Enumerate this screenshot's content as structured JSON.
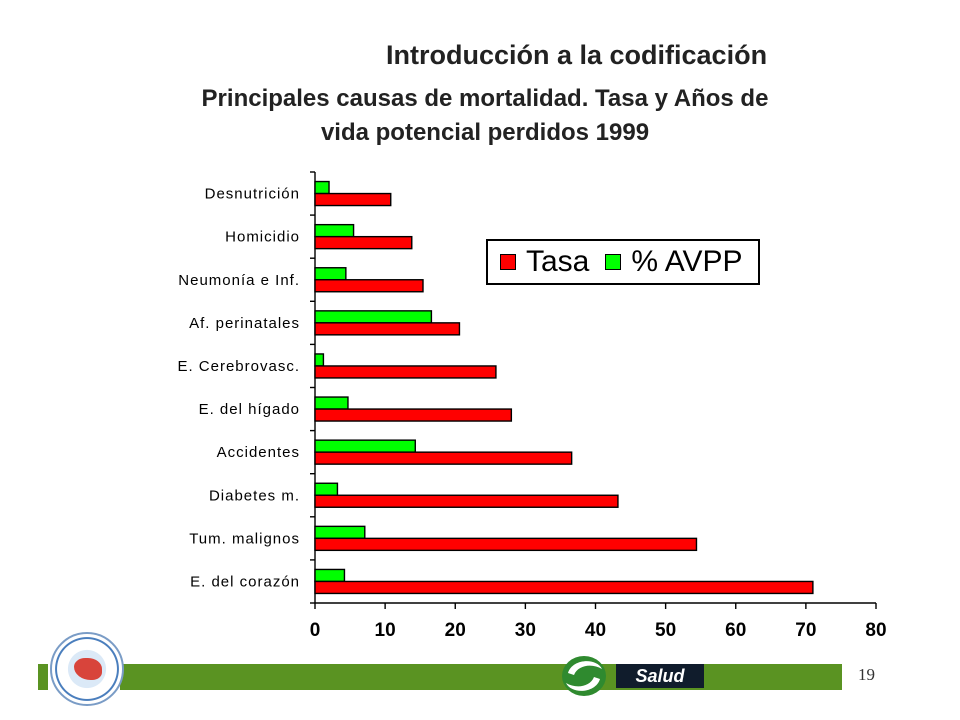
{
  "slide": {
    "title": "Introducción a la codificación",
    "page_number": "19",
    "brand": "Salud"
  },
  "chart_data": {
    "type": "bar",
    "orientation": "horizontal",
    "title_line1": "Principales causas de mortalidad. Tasa y Años de",
    "title_line2": "vida potencial perdidos 1999",
    "categories": [
      "Desnutrición",
      "Homicidio",
      "Neumonía e Inf.",
      "Af. perinatales",
      "E. Cerebrovasc.",
      "E. del hígado",
      "Accidentes",
      "Diabetes m.",
      "Tum. malignos",
      "E. del corazón"
    ],
    "series": [
      {
        "name": "Tasa",
        "color": "#ff0000",
        "values": [
          10.8,
          13.8,
          15.4,
          20.6,
          25.8,
          28.0,
          36.6,
          43.2,
          54.4,
          71.0
        ]
      },
      {
        "name": "% AVPP",
        "color": "#00ff00",
        "values": [
          2.0,
          5.5,
          4.4,
          16.6,
          1.2,
          4.7,
          14.3,
          3.2,
          7.1,
          4.2
        ]
      }
    ],
    "xlim": [
      0,
      80
    ],
    "xticks": [
      "0",
      "10",
      "20",
      "30",
      "40",
      "50",
      "60",
      "70",
      "80"
    ],
    "legend_position": "upper-right inside",
    "grid": false
  }
}
